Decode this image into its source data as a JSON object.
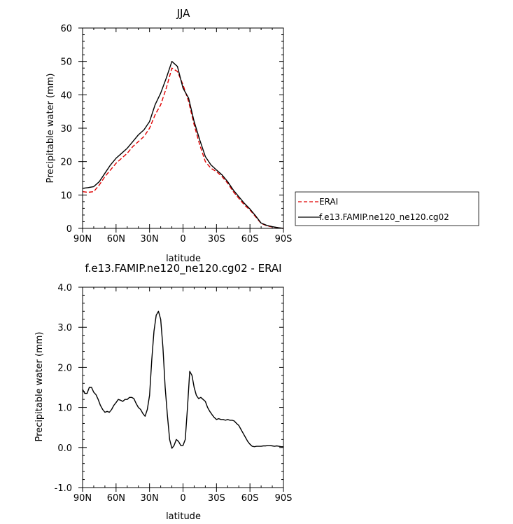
{
  "chart_data": [
    {
      "type": "line",
      "title": "JJA",
      "xlabel": "latitude",
      "ylabel": "Precipitable water (mm)",
      "xlim": [
        90,
        -90
      ],
      "ylim": [
        0,
        60
      ],
      "x_ticks": [
        90,
        60,
        30,
        0,
        -30,
        -60,
        -90
      ],
      "x_tick_labels": [
        "90N",
        "60N",
        "30N",
        "0",
        "30S",
        "60S",
        "90S"
      ],
      "y_ticks": [
        0,
        10,
        20,
        30,
        40,
        50,
        60
      ],
      "y_tick_labels": [
        "0",
        "10",
        "20",
        "30",
        "40",
        "50",
        "60"
      ],
      "grid": false,
      "legend": "right",
      "series": [
        {
          "name": "ERAI",
          "color": "#e00000",
          "dash": "dashed",
          "x": [
            90,
            85,
            80,
            75,
            70,
            65,
            60,
            55,
            50,
            45,
            40,
            35,
            30,
            25,
            20,
            15,
            10,
            5,
            0,
            -5,
            -10,
            -15,
            -20,
            -25,
            -30,
            -35,
            -40,
            -45,
            -50,
            -55,
            -60,
            -65,
            -70,
            -75,
            -80,
            -85,
            -90
          ],
          "y": [
            11,
            10.8,
            11,
            13,
            15.5,
            17.5,
            19.5,
            21,
            22.5,
            24.5,
            26,
            27.5,
            30,
            34,
            37,
            42,
            48,
            47,
            43,
            38,
            31,
            25,
            20,
            18,
            17,
            15.5,
            13.5,
            11,
            9,
            7,
            5.5,
            3.5,
            1.5,
            0.8,
            0.4,
            0.2,
            0
          ]
        },
        {
          "name": "f.e13.FAMIP.ne120_ne120.cg02",
          "color": "#000000",
          "dash": "solid",
          "x": [
            90,
            85,
            80,
            75,
            70,
            65,
            60,
            55,
            50,
            45,
            40,
            35,
            30,
            25,
            20,
            15,
            10,
            5,
            0,
            -5,
            -10,
            -15,
            -20,
            -25,
            -30,
            -35,
            -40,
            -45,
            -50,
            -55,
            -60,
            -65,
            -70,
            -75,
            -80,
            -85,
            -90
          ],
          "y": [
            12,
            12.2,
            12.5,
            14,
            16.5,
            19,
            21,
            22.5,
            24,
            26,
            28,
            29.5,
            32,
            37,
            40.5,
            45,
            50,
            48.5,
            42,
            39,
            32,
            26.5,
            21.5,
            19,
            17.5,
            16,
            14,
            11.5,
            9.5,
            7.5,
            5.8,
            3.8,
            1.6,
            0.9,
            0.5,
            0.2,
            0
          ]
        }
      ]
    },
    {
      "type": "line",
      "title": "f.e13.FAMIP.ne120_ne120.cg02 - ERAI",
      "xlabel": "latitude",
      "ylabel": "Precipitable water (mm)",
      "xlim": [
        90,
        -90
      ],
      "ylim": [
        -1,
        4
      ],
      "x_ticks": [
        90,
        60,
        30,
        0,
        -30,
        -60,
        -90
      ],
      "x_tick_labels": [
        "90N",
        "60N",
        "30N",
        "0",
        "30S",
        "60S",
        "90S"
      ],
      "y_ticks": [
        -1,
        0,
        1,
        2,
        3,
        4
      ],
      "y_tick_labels": [
        "-1.0",
        "0.0",
        "1.0",
        "2.0",
        "3.0",
        "4.0"
      ],
      "grid": false,
      "series": [
        {
          "color": "#000000",
          "dash": "solid",
          "x": [
            90,
            88,
            86,
            84,
            82,
            80,
            78,
            76,
            74,
            72,
            70,
            68,
            66,
            64,
            62,
            60,
            58,
            56,
            54,
            52,
            50,
            48,
            46,
            44,
            42,
            40,
            38,
            36,
            34,
            32,
            30,
            28,
            26,
            24,
            22,
            20,
            18,
            16,
            14,
            12,
            10,
            8,
            6,
            4,
            2,
            0,
            -2,
            -4,
            -6,
            -8,
            -10,
            -12,
            -14,
            -16,
            -18,
            -20,
            -22,
            -24,
            -26,
            -28,
            -30,
            -32,
            -34,
            -36,
            -38,
            -40,
            -42,
            -44,
            -46,
            -48,
            -50,
            -52,
            -54,
            -56,
            -58,
            -60,
            -62,
            -64,
            -66,
            -68,
            -70,
            -72,
            -74,
            -76,
            -78,
            -80,
            -82,
            -84,
            -86,
            -88,
            -90
          ],
          "y": [
            1.45,
            1.35,
            1.35,
            1.5,
            1.5,
            1.38,
            1.32,
            1.2,
            1.05,
            0.95,
            0.88,
            0.9,
            0.88,
            0.95,
            1.05,
            1.12,
            1.2,
            1.18,
            1.15,
            1.2,
            1.2,
            1.25,
            1.25,
            1.22,
            1.1,
            1.0,
            0.95,
            0.85,
            0.78,
            0.95,
            1.3,
            2.2,
            2.9,
            3.3,
            3.4,
            3.2,
            2.5,
            1.5,
            0.8,
            0.2,
            -0.02,
            0.05,
            0.2,
            0.15,
            0.05,
            0.05,
            0.2,
            1.0,
            1.9,
            1.8,
            1.5,
            1.3,
            1.22,
            1.25,
            1.2,
            1.15,
            1.0,
            0.9,
            0.82,
            0.75,
            0.7,
            0.72,
            0.7,
            0.7,
            0.68,
            0.7,
            0.68,
            0.68,
            0.66,
            0.6,
            0.55,
            0.45,
            0.35,
            0.25,
            0.15,
            0.08,
            0.03,
            0.02,
            0.03,
            0.03,
            0.03,
            0.04,
            0.04,
            0.05,
            0.05,
            0.04,
            0.03,
            0.04,
            0.03,
            0.02,
            0.02
          ]
        }
      ]
    }
  ]
}
